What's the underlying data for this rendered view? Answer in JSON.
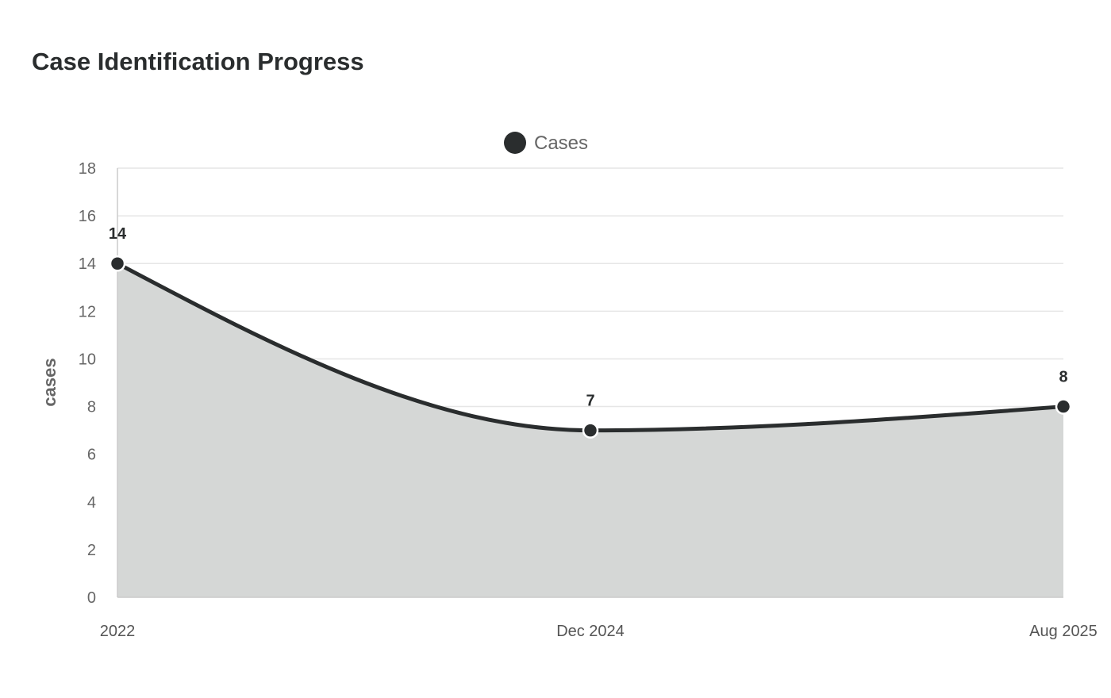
{
  "chart_data": {
    "type": "area",
    "title": "Case Identification Progress",
    "xlabel": "",
    "ylabel": "cases",
    "categories": [
      "2022",
      "Dec 2024",
      "Aug 2025"
    ],
    "series": [
      {
        "name": "Cases",
        "values": [
          14,
          7,
          8
        ],
        "data_labels": [
          "14",
          "7",
          "8"
        ]
      }
    ],
    "ylim": [
      0,
      18
    ],
    "yticks": [
      "0",
      "2",
      "4",
      "6",
      "8",
      "10",
      "12",
      "14",
      "16",
      "18"
    ],
    "grid": true,
    "legend_position": "top-center",
    "colors": {
      "series": "#2a2d2e",
      "area_fill": "#d5d7d6",
      "grid": "#e6e6e6",
      "axis": "#cccccc",
      "marker_stroke": "#ffffff"
    }
  }
}
